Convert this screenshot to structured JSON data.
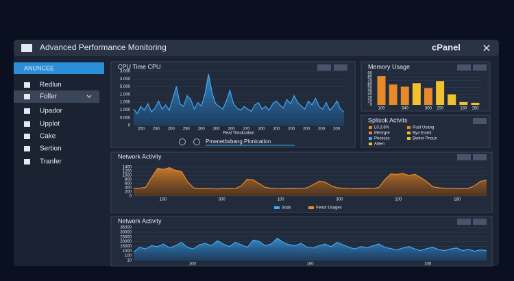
{
  "header": {
    "title": "Advanced Performance Monitoring",
    "brand": "cPanel"
  },
  "sidebar": {
    "heading": "ANUNCEE",
    "items": [
      "Redlun",
      "Foller",
      "Upador",
      "Upplot",
      "Cake",
      "Sertion",
      "Tranfer"
    ]
  },
  "activities": {
    "title": "Splisok Actvits",
    "items": [
      {
        "name": "L0.3.6%",
        "color": "#e8892a"
      },
      {
        "name": "Rust Usang",
        "color": "#e8892a"
      },
      {
        "name": "Mertrgre",
        "color": "#e8892a"
      },
      {
        "name": "Bya Esant",
        "color": "#f2c12e"
      },
      {
        "name": "Pncesss",
        "color": "#3fa9f5"
      },
      {
        "name": "Bwirer Pncun",
        "color": "#f2c12e"
      },
      {
        "name": "Atiien",
        "color": "#f2c12e"
      }
    ]
  },
  "chart_data": [
    {
      "type": "area",
      "title": "CPU Time CPU",
      "x_label": "Real Timulization",
      "footer": "Pmenetbxbang Plonication",
      "color": "#3fa9f5",
      "ylim": [
        0,
        100
      ],
      "y_labels": [
        "3.000",
        "3.000",
        "5.000",
        "1.000",
        "1.000",
        "1.000",
        "0.000",
        "0"
      ],
      "x_labels": [
        "200",
        "230",
        "200",
        "250",
        "200",
        "200",
        "200",
        "270",
        "200",
        "200",
        "200",
        "200",
        "200",
        "200"
      ],
      "values": [
        30,
        22,
        35,
        28,
        40,
        25,
        32,
        45,
        30,
        38,
        28,
        50,
        72,
        40,
        35,
        55,
        48,
        30,
        42,
        36,
        58,
        95,
        60,
        40,
        35,
        30,
        45,
        65,
        40,
        32,
        28,
        35,
        30,
        26,
        38,
        42,
        30,
        35,
        28,
        40,
        45,
        38,
        32,
        48,
        40,
        55,
        42,
        36,
        30,
        45,
        38,
        50,
        35,
        30,
        42,
        28,
        35,
        45,
        30,
        25
      ]
    },
    {
      "type": "bar",
      "title": "Memory Usage",
      "ylim": [
        0,
        90
      ],
      "yticks": [
        0,
        10,
        20,
        30,
        40,
        50,
        60,
        70,
        80,
        90
      ],
      "categories": [
        "100",
        null,
        "340",
        null,
        "300",
        "200",
        null,
        "180",
        "150"
      ],
      "values": [
        82,
        58,
        52,
        62,
        48,
        68,
        30,
        8,
        6
      ],
      "colors": [
        "#e8892a",
        "#e8892a",
        "#e8892a",
        "#f2c12e",
        "#e8892a",
        "#f2c12e",
        "#f2c12e",
        "#f2c12e",
        "#f2c12e"
      ]
    },
    {
      "type": "area",
      "title": "Network Activity",
      "color": "#e8892a",
      "ylim": [
        0,
        1500
      ],
      "yticks": [
        0,
        200,
        400,
        600,
        800,
        1000,
        1200,
        1400
      ],
      "x_labels": [
        "100",
        "300",
        "100",
        "300",
        "100",
        "180"
      ],
      "legend": [
        {
          "name": "Sods",
          "color": "#3fa9f5"
        },
        {
          "name": "Fenor Usages",
          "color": "#e8892a"
        }
      ],
      "values": [
        350,
        380,
        420,
        900,
        1350,
        1300,
        1380,
        1250,
        1200,
        700,
        400,
        350,
        380,
        360,
        340,
        370,
        350,
        360,
        500,
        820,
        780,
        600,
        420,
        380,
        360,
        350,
        380,
        370,
        360,
        400,
        550,
        720,
        680,
        500,
        400,
        380,
        360,
        350,
        370,
        380,
        360,
        420,
        800,
        1080,
        1050,
        1100,
        1000,
        1060,
        900,
        700,
        450,
        400,
        380,
        360,
        370,
        350,
        380,
        500,
        720,
        760
      ]
    },
    {
      "type": "area",
      "title": "Network Activity",
      "color": "#3fa9f5",
      "ylim": [
        0,
        100
      ],
      "y_labels": [
        "35000",
        "30000",
        "25000",
        "20000",
        "15000",
        "1000",
        "100",
        "10"
      ],
      "x_labels": [
        "100",
        "100",
        "100"
      ],
      "values": [
        25,
        40,
        35,
        45,
        42,
        50,
        38,
        45,
        55,
        40,
        35,
        48,
        52,
        45,
        60,
        50,
        42,
        55,
        48,
        40,
        62,
        58,
        45,
        50,
        68,
        55,
        48,
        45,
        52,
        40,
        38,
        45,
        50,
        42,
        55,
        48,
        40,
        35,
        42,
        38,
        45,
        50,
        40,
        36,
        32,
        38,
        42,
        35,
        30,
        36,
        40,
        33,
        30,
        35,
        38,
        30,
        34,
        28,
        32,
        30
      ]
    }
  ]
}
